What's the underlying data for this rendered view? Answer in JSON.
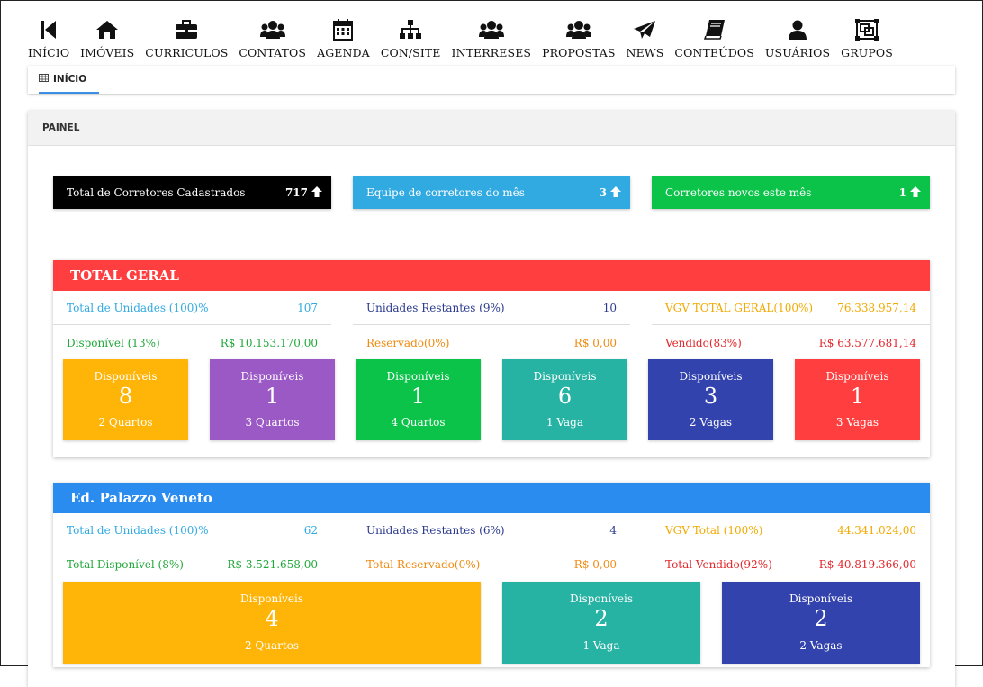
{
  "nav": [
    {
      "label": "INÍCIO",
      "icon": "step-backward-icon"
    },
    {
      "label": "IMÓVEIS",
      "icon": "home-icon"
    },
    {
      "label": "CURRICULOS",
      "icon": "briefcase-icon"
    },
    {
      "label": "CONTATOS",
      "icon": "users-icon"
    },
    {
      "label": "AGENDA",
      "icon": "calendar-icon"
    },
    {
      "label": "CON/SITE",
      "icon": "sitemap-icon"
    },
    {
      "label": "INTERRESES",
      "icon": "users-icon"
    },
    {
      "label": "PROPOSTAS",
      "icon": "users-icon"
    },
    {
      "label": "NEWS",
      "icon": "paper-plane-icon"
    },
    {
      "label": "CONTEÚDOS",
      "icon": "book-icon"
    },
    {
      "label": "USUÁRIOS",
      "icon": "user-icon"
    },
    {
      "label": "GRUPOS",
      "icon": "object-group-icon"
    }
  ],
  "breadcrumb": {
    "label": "INÍCIO",
    "icon": "table-icon"
  },
  "panel": {
    "title": "PAINEL"
  },
  "stats": [
    {
      "label": "Total de Corretores Cadastrados",
      "value": "717",
      "color": "#000000"
    },
    {
      "label": "Equipe de corretores do mês",
      "value": "3",
      "color": "#31a9e1"
    },
    {
      "label": "Corretores novos este mês",
      "value": "1",
      "color": "#0cc34a"
    }
  ],
  "total_geral": {
    "title": "TOTAL GERAL",
    "color": "#ff3f3f",
    "rows": [
      {
        "label": "Total de Unidades (100)%",
        "value": "107",
        "color": "#31a9e1"
      },
      {
        "label": "Unidades Restantes (9%)",
        "value": "10",
        "color": "#2b3a8f"
      },
      {
        "label": "VGV TOTAL GERAL(100%)",
        "value": "76.338.957,14",
        "color": "#f2a900"
      },
      {
        "label": "Disponível (13%)",
        "value": "R$ 10.153.170,00",
        "color": "#20a83a"
      },
      {
        "label": "Reservado(0%)",
        "value": "R$ 0,00",
        "color": "#f08a10"
      },
      {
        "label": "Vendido(83%)",
        "value": "R$ 63.577.681,14",
        "color": "#e3262b"
      }
    ],
    "tiles": [
      {
        "title": "Disponíveis",
        "number": "8",
        "sub": "2 Quartos",
        "cls": "c-orange"
      },
      {
        "title": "Disponíveis",
        "number": "1",
        "sub": "3 Quartos",
        "cls": "c-purple"
      },
      {
        "title": "Disponíveis",
        "number": "1",
        "sub": "4 Quartos",
        "cls": "c-green"
      },
      {
        "title": "Disponíveis",
        "number": "6",
        "sub": "1 Vaga",
        "cls": "c-teal"
      },
      {
        "title": "Disponíveis",
        "number": "3",
        "sub": "2 Vagas",
        "cls": "c-indigo"
      },
      {
        "title": "Disponíveis",
        "number": "1",
        "sub": "3 Vagas",
        "cls": "c-red"
      }
    ]
  },
  "palazzo": {
    "title": "Ed. Palazzo Veneto",
    "color": "#2a8cef",
    "rows": [
      {
        "label": "Total de Unidades (100)%",
        "value": "62",
        "color": "#31a9e1"
      },
      {
        "label": "Unidades Restantes (6%)",
        "value": "4",
        "color": "#2b3a8f"
      },
      {
        "label": "VGV Total (100%)",
        "value": "44.341.024,00",
        "color": "#f2a900"
      },
      {
        "label": "Total Disponível (8%)",
        "value": "R$ 3.521.658,00",
        "color": "#20a83a"
      },
      {
        "label": "Total Reservado(0%)",
        "value": "R$ 0,00",
        "color": "#f08a10"
      },
      {
        "label": "Total Vendido(92%)",
        "value": "R$ 40.819.366,00",
        "color": "#e3262b"
      }
    ],
    "tiles": [
      {
        "title": "Disponíveis",
        "number": "4",
        "sub": "2 Quartos",
        "cls": "c-orange"
      },
      {
        "title": "Disponíveis",
        "number": "2",
        "sub": "1 Vaga",
        "cls": "c-teal"
      },
      {
        "title": "Disponíveis",
        "number": "2",
        "sub": "2 Vagas",
        "cls": "c-indigo"
      }
    ]
  }
}
